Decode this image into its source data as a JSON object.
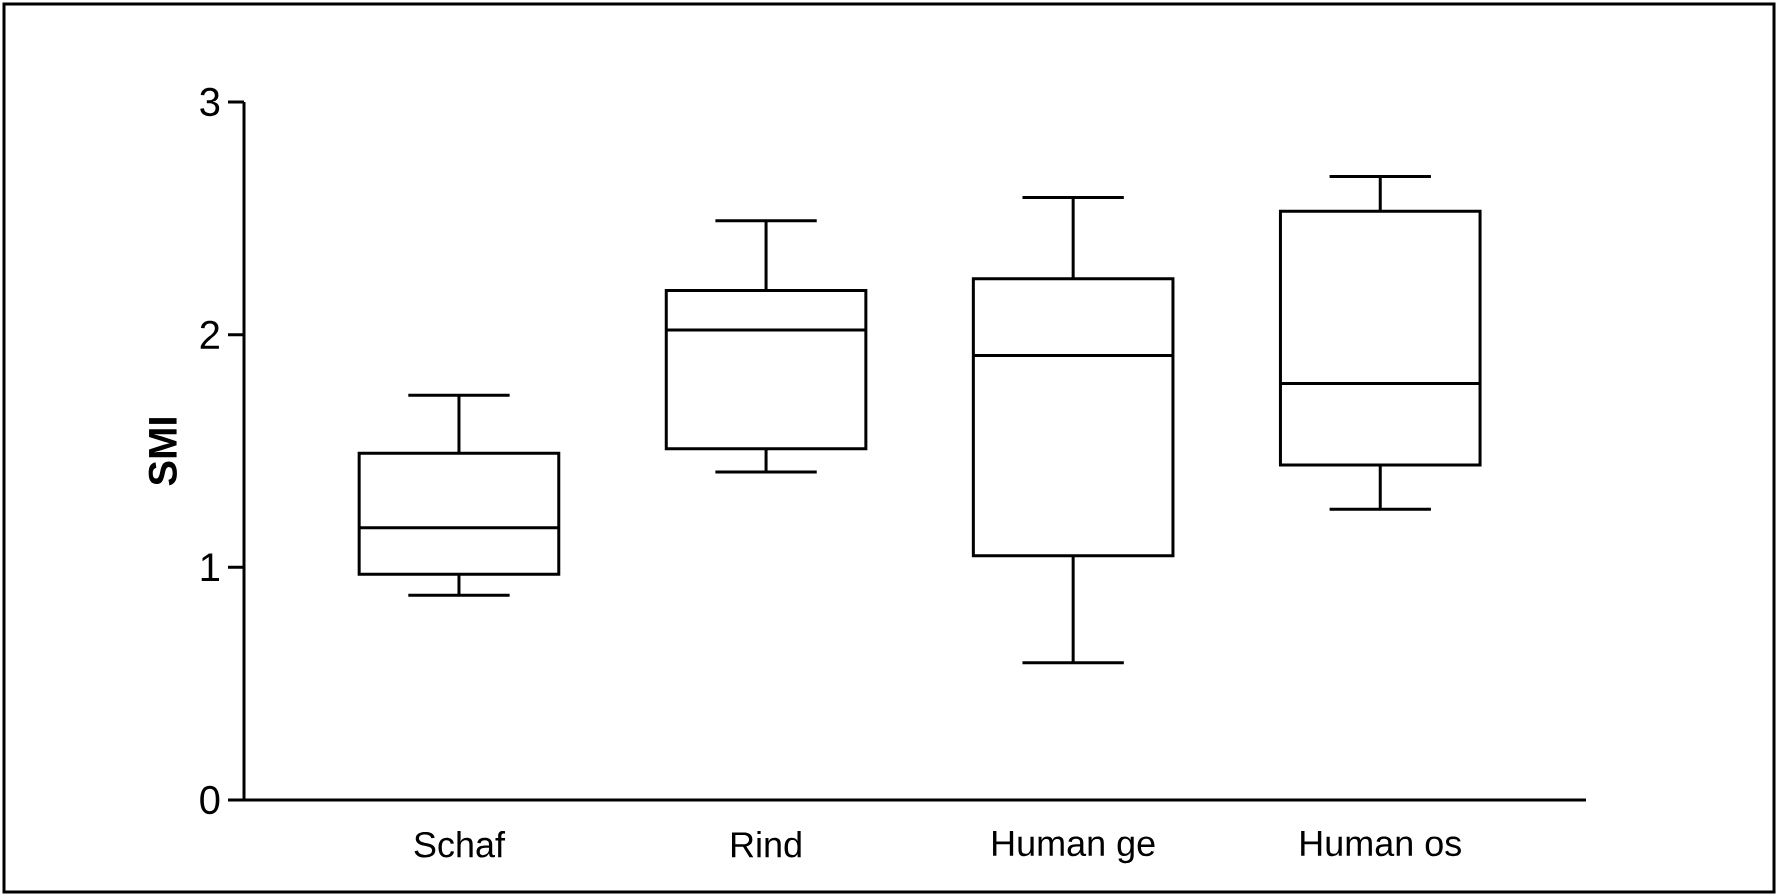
{
  "chart_data": {
    "type": "box",
    "ylabel": "SMI",
    "categories": [
      "Schaf",
      "Rind",
      "Human ge",
      "Human os"
    ],
    "boxes": [
      {
        "low": 0.88,
        "q1": 0.97,
        "median": 1.17,
        "q3": 1.49,
        "high": 1.74
      },
      {
        "low": 1.41,
        "q1": 1.51,
        "median": 2.02,
        "q3": 2.19,
        "high": 2.49
      },
      {
        "low": 0.59,
        "q1": 1.05,
        "median": 1.91,
        "q3": 2.24,
        "high": 2.59
      },
      {
        "low": 1.25,
        "q1": 1.44,
        "median": 1.79,
        "q3": 2.53,
        "high": 2.68
      }
    ],
    "ylim": [
      0,
      3
    ],
    "yticks": [
      0,
      1,
      2,
      3
    ],
    "grid": false
  }
}
